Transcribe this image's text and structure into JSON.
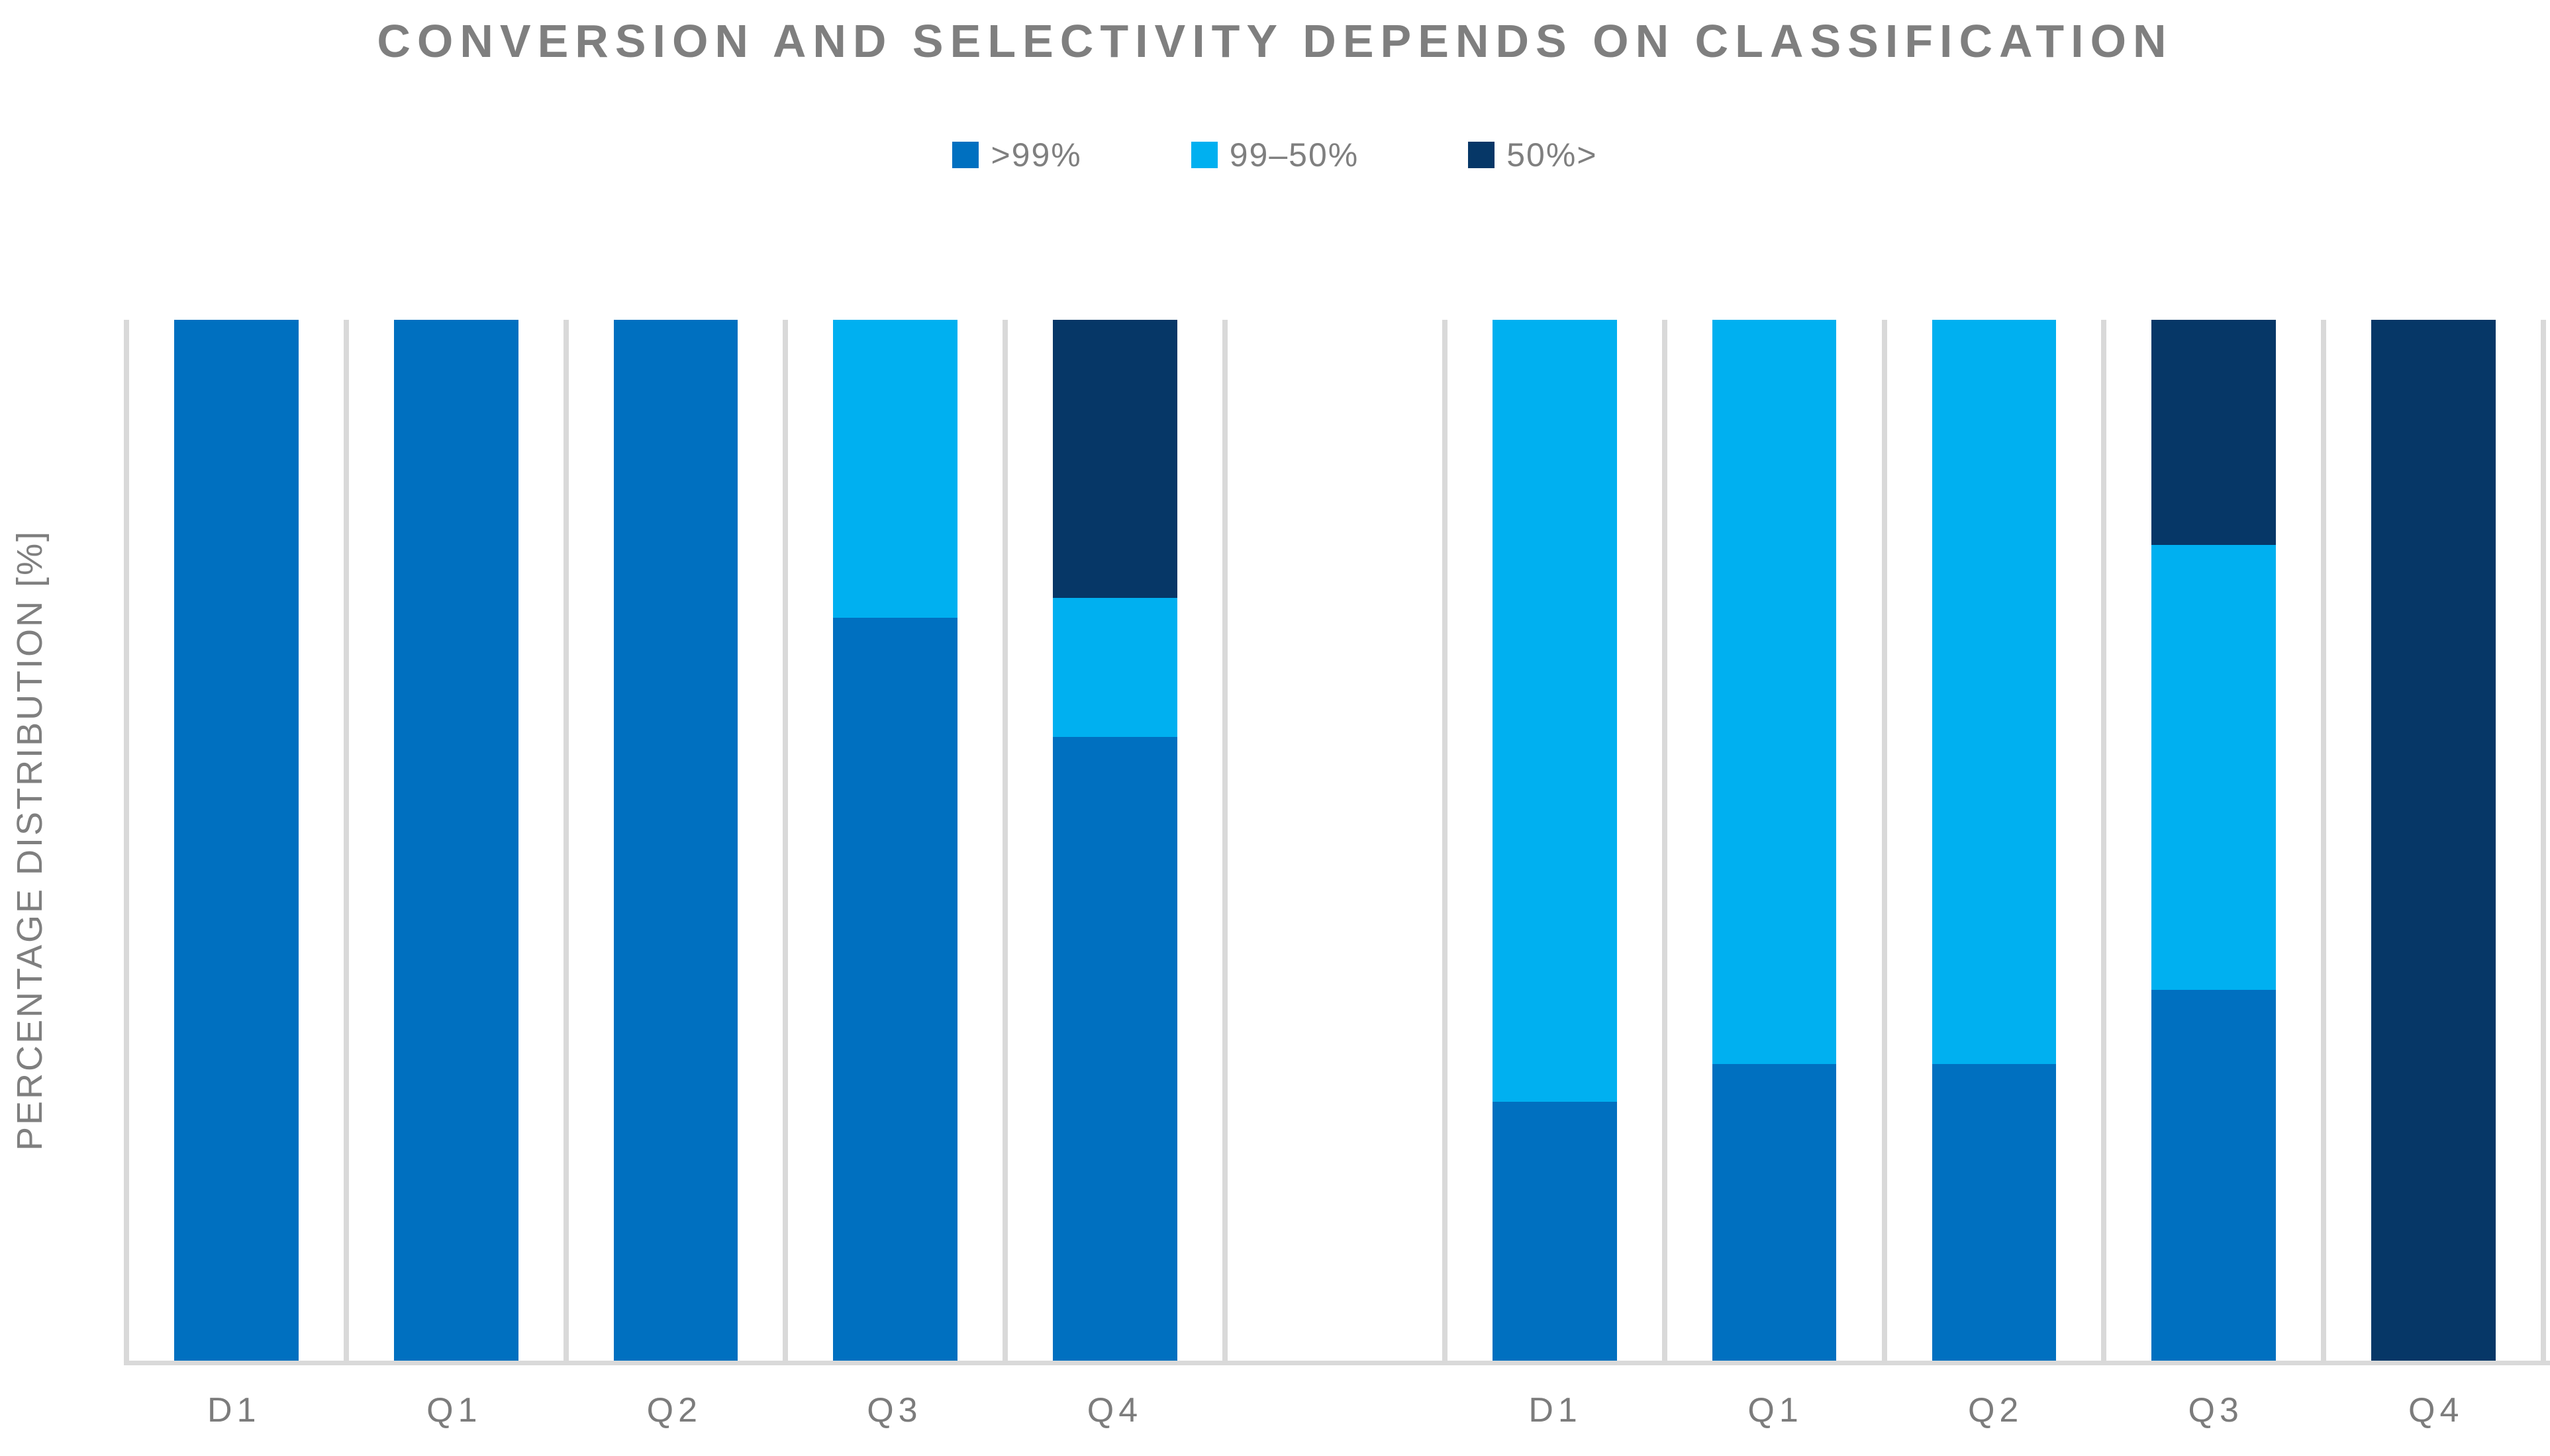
{
  "title": "CONVERSION AND SELECTIVITY DEPENDS ON CLASSIFICATION",
  "chart_data": {
    "type": "bar",
    "variant": "stacked-percentage-columns",
    "title": "CONVERSION AND SELECTIVITY DEPENDS ON CLASSIFICATION",
    "xlabel": "",
    "ylabel": "PERCENTAGE DISTRIBUTION [%]",
    "unit": "%",
    "ylim": [
      0,
      100
    ],
    "y_ticks_visible": false,
    "grid": "vertical-category-separators",
    "legend_position": "top-center",
    "categories": [
      "D1",
      "Q1",
      "Q2",
      "Q3",
      "Q4",
      "",
      "D1",
      "Q1",
      "Q2",
      "Q3",
      "Q4"
    ],
    "group_note": "two groups of five bars (D1,Q1-Q4) separated by one empty slot",
    "series": [
      {
        "name": ">99%",
        "color": "#0070c0",
        "values": [
          100,
          100,
          100,
          71.4,
          59.9,
          null,
          24.9,
          28.5,
          28.5,
          35.6,
          0
        ]
      },
      {
        "name": "99–50%",
        "color": "#00b0f0",
        "values": [
          0,
          0,
          0,
          28.6,
          13.4,
          null,
          75.1,
          71.5,
          71.5,
          42.8,
          0
        ]
      },
      {
        "name": "50%>",
        "color": "#063767",
        "values": [
          0,
          0,
          0,
          0,
          26.7,
          null,
          0,
          0,
          0,
          21.6,
          100
        ]
      }
    ],
    "colors": {
      "title_text": "#7f7f7f",
      "axis_text": "#7c7c7c",
      "legend_text": "#7f7f7f",
      "gridline": "#d9d9d9",
      "background": "#ffffff"
    }
  }
}
